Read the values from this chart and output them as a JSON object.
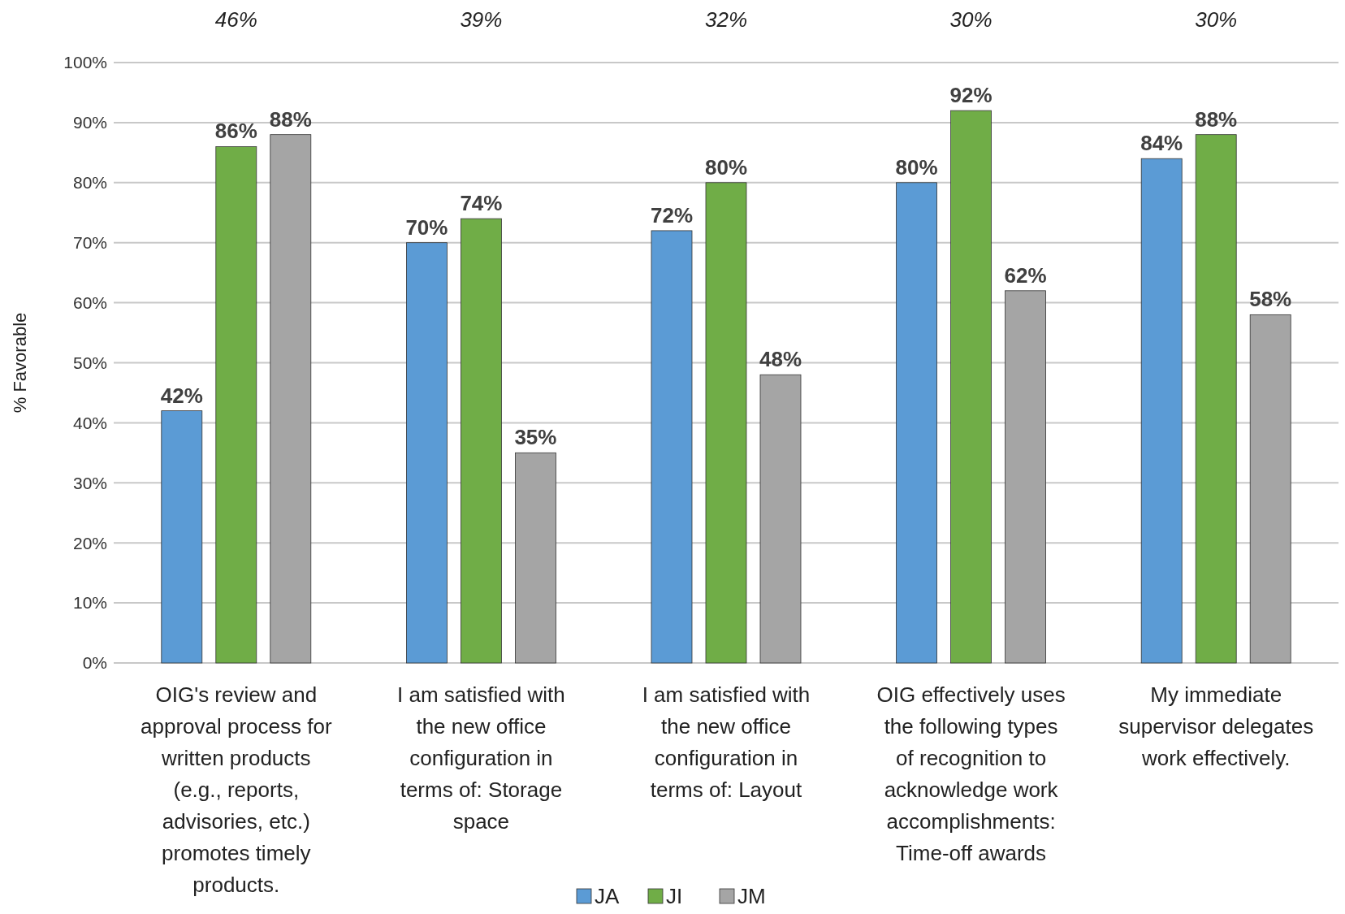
{
  "chart_data": {
    "type": "bar",
    "ylabel": "% Favorable",
    "categories": [
      "OIG's review and approval process for written products (e.g., reports, advisories, etc.) promotes timely products.",
      "I am satisfied with the new office configuration in terms of: Storage space",
      "I am satisfied with the new office configuration in terms of: Layout",
      "OIG effectively uses the following types of recognition to acknowledge work accomplishments: Time-off awards",
      "My immediate supervisor delegates work effectively."
    ],
    "series": [
      {
        "name": "JA",
        "color": "#5b9bd5",
        "values": [
          42,
          70,
          72,
          80,
          84
        ]
      },
      {
        "name": "JI",
        "color": "#70ad47",
        "values": [
          86,
          74,
          80,
          92,
          88
        ]
      },
      {
        "name": "JM",
        "color": "#a5a5a5",
        "values": [
          88,
          35,
          48,
          62,
          58
        ]
      }
    ],
    "value_labels": [
      [
        "42%",
        "70%",
        "72%",
        "80%",
        "84%"
      ],
      [
        "86%",
        "74%",
        "80%",
        "92%",
        "88%"
      ],
      [
        "88%",
        "35%",
        "48%",
        "62%",
        "58%"
      ]
    ],
    "annotations": [
      "46%",
      "39%",
      "32%",
      "30%",
      "30%"
    ],
    "ylim": [
      0,
      100
    ],
    "yticks": [
      {
        "value": 0,
        "label": "0%"
      },
      {
        "value": 10,
        "label": "10%"
      },
      {
        "value": 20,
        "label": "20%"
      },
      {
        "value": 30,
        "label": "30%"
      },
      {
        "value": 40,
        "label": "40%"
      },
      {
        "value": 50,
        "label": "50%"
      },
      {
        "value": 60,
        "label": "60%"
      },
      {
        "value": 70,
        "label": "70%"
      },
      {
        "value": 80,
        "label": "80%"
      },
      {
        "value": 90,
        "label": "90%"
      },
      {
        "value": 100,
        "label": "100%"
      }
    ],
    "grid": "y",
    "legend": "bottom"
  }
}
